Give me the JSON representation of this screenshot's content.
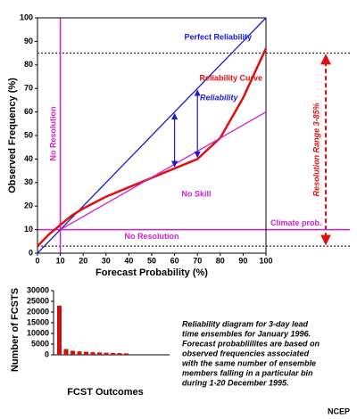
{
  "chart_data": [
    {
      "type": "line",
      "xlabel": "Forecast Probability (%)",
      "ylabel": "Observed Frequency (%)",
      "xlim": [
        0,
        100
      ],
      "ylim": [
        0,
        100
      ],
      "xticks": [
        0,
        10,
        20,
        30,
        40,
        50,
        60,
        70,
        80,
        90,
        100
      ],
      "yticks": [
        0,
        10,
        20,
        30,
        40,
        50,
        60,
        70,
        80,
        90,
        100
      ],
      "series": [
        {
          "name": "Perfect Reliability",
          "color": "#1a1acc",
          "x": [
            0,
            100
          ],
          "values": [
            0,
            100
          ]
        },
        {
          "name": "Reliability Curve",
          "color": "#e01010",
          "x": [
            0,
            5,
            10,
            15,
            20,
            30,
            40,
            50,
            60,
            70,
            80,
            90,
            100
          ],
          "values": [
            3,
            8,
            12,
            16,
            19,
            24,
            28,
            32,
            36,
            40,
            49,
            66,
            87
          ]
        },
        {
          "name": "No Skill",
          "color": "#cc22cc",
          "x": [
            10,
            100
          ],
          "values": [
            10,
            60
          ]
        }
      ],
      "climate": {
        "value": 10,
        "color": "#cc22cc",
        "labels": [
          "Climate prob.",
          "No Resolution"
        ]
      },
      "no_resolution_x": {
        "value": 10,
        "color": "#cc22cc",
        "label": "No Resolution"
      },
      "resolution_range": {
        "label": "Resolution Range 3-85%",
        "values": [
          3,
          85
        ],
        "color": "#e01010"
      },
      "reliability_arrows": {
        "label": "Reliability",
        "color": "#1a1acc",
        "x": [
          60,
          70
        ],
        "from": [
          36,
          40
        ],
        "to": [
          60,
          70
        ]
      }
    },
    {
      "type": "bar",
      "xlabel": "FCST Outcomes",
      "ylabel": "Number of FCSTS",
      "ylim": [
        0,
        30000
      ],
      "yticks": [
        0,
        5000,
        10000,
        15000,
        20000,
        25000,
        30000
      ],
      "color": "#cc1111",
      "values": [
        23000,
        2700,
        1900,
        1600,
        1400,
        1200,
        1100,
        1000,
        900,
        800,
        700
      ]
    }
  ],
  "caption": [
    "Reliability diagram for 3-day lead",
    "time ensembles for January 1996.",
    "Forecast probabliilites are based on",
    "observed frequencies associated",
    "with the same number of ensemble",
    "members falling in a particular bin",
    "during 1-20 December 1995."
  ],
  "credit": "NCEP"
}
